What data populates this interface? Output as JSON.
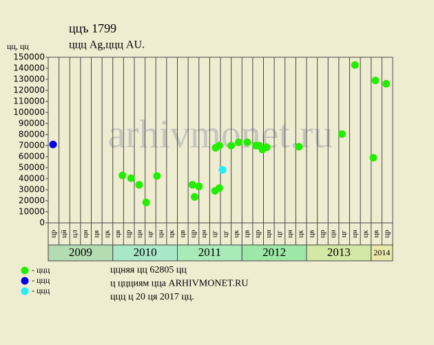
{
  "chart_data": {
    "type": "scatter",
    "title": "ццъ 1799",
    "subtitle": "ццц Ag,ццц AU.",
    "y_label": "цц, цц",
    "watermark": "arhivmonet.ru",
    "ylim": [
      0,
      150000
    ],
    "yticks": [
      0,
      10000,
      20000,
      30000,
      40000,
      50000,
      60000,
      70000,
      80000,
      90000,
      100000,
      110000,
      120000,
      130000,
      140000,
      150000
    ],
    "xlim": [
      0,
      32
    ],
    "categories": [
      "цр",
      "цй",
      "цл",
      "цн",
      "ця",
      "цк",
      "цв",
      "цр",
      "цн",
      "цг",
      "цн",
      "цк",
      "цв",
      "цр",
      "цн",
      "цг",
      "цг",
      "цк",
      "цв",
      "цр",
      "цн",
      "цг",
      "цн",
      "цк",
      "цв",
      "цр",
      "цн",
      "цг",
      "цн",
      "цк",
      "цв",
      "цр"
    ],
    "years": [
      "2009",
      "2010",
      "2011",
      "2012",
      "2013",
      "2014"
    ],
    "year_colors": [
      "#b3dcb3",
      "#a8e8c8",
      "#a8eab8",
      "#9de8a8",
      "#d2e8a4",
      "#e8e8a8"
    ],
    "series": [
      {
        "name": "- ццц",
        "color": "#22ee00",
        "x": [
          6.9,
          7.7,
          8.45,
          9.1,
          10.1,
          13.4,
          13.6,
          14.0,
          15.5,
          15.55,
          15.9,
          15.9,
          17.0,
          17.7,
          18.5,
          19.3,
          19.6,
          19.9,
          20.3,
          23.3,
          27.3,
          28.5,
          30.2,
          30.4,
          31.4
        ],
        "values": [
          43000,
          40500,
          34500,
          18500,
          42500,
          34500,
          23500,
          33000,
          29000,
          68000,
          31500,
          70000,
          70000,
          73000,
          73000,
          70000,
          70000,
          66500,
          68500,
          69000,
          80500,
          143000,
          59000,
          129000,
          126000
        ]
      },
      {
        "name": "- ццц",
        "color": "#0000ee",
        "x": [
          0.45
        ],
        "values": [
          71000
        ]
      },
      {
        "name": "- ццц",
        "color": "#22eeff",
        "x": [
          16.2
        ],
        "values": [
          48000
        ]
      }
    ],
    "notes": [
      "ццняя цц 62805 цц",
      "ц ццциям цца ARHIVMONET.RU",
      "ццц ц 20 ця 2017 цц."
    ]
  }
}
